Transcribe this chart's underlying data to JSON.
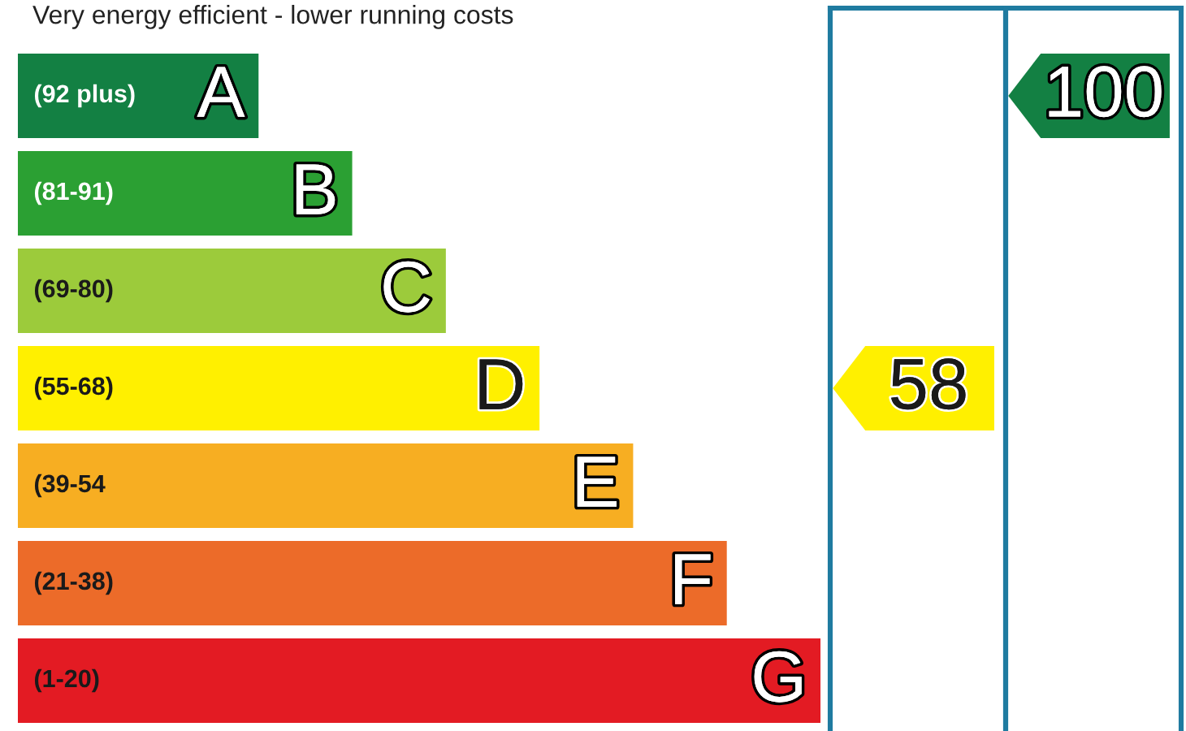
{
  "chart_data": {
    "type": "other",
    "title": "Very energy efficient - lower running costs",
    "categories": [
      "(92 plus)",
      "(81-91)",
      "(69-80)",
      "(55-68)",
      "(39-54",
      "(21-38)",
      "(1-20)"
    ],
    "y2_categories": [
      "A",
      "B",
      "C",
      "D",
      "E",
      "F",
      "G"
    ],
    "colors": [
      "#138043",
      "#2ba033",
      "#9ccb3b",
      "#fff000",
      "#f7ae22",
      "#ec6b29",
      "#e31b23"
    ],
    "series": [
      {
        "color": "#fff000",
        "values": [
          null,
          null,
          null,
          58,
          null,
          null,
          null
        ]
      },
      {
        "color": "#138043",
        "values": [
          100,
          null,
          null,
          null,
          null,
          null,
          null
        ]
      }
    ],
    "data_labels": true
  }
}
